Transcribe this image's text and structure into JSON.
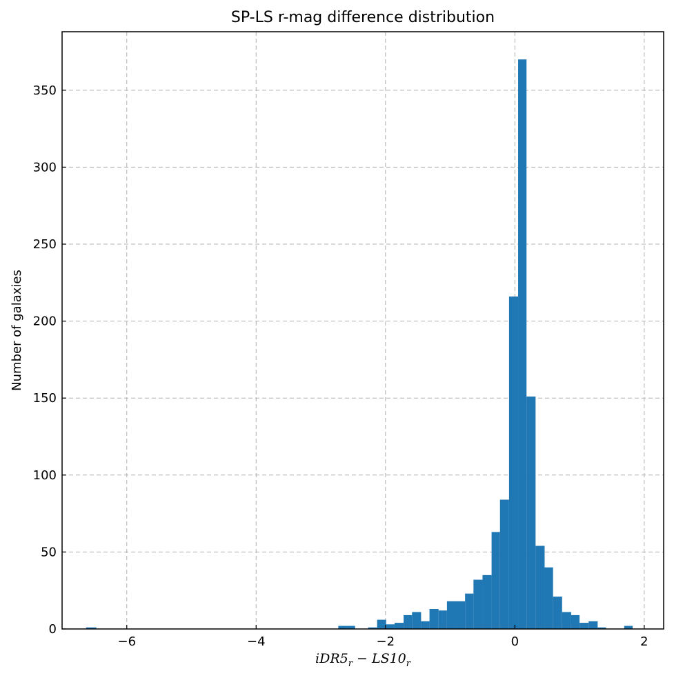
{
  "chart_data": {
    "type": "bar",
    "title": "SP-LS r-mag difference distribution",
    "xlabel": "iDR5_r − LS10_r",
    "ylabel": "Number of galaxies",
    "xlim": [
      -7.0,
      2.3
    ],
    "ylim": [
      0,
      388
    ],
    "xticks": [
      -6,
      -4,
      -2,
      0,
      2
    ],
    "xtick_labels": [
      "−6",
      "−4",
      "−2",
      "0",
      "2"
    ],
    "yticks": [
      0,
      50,
      100,
      150,
      200,
      250,
      300,
      350
    ],
    "grid": true,
    "color": "#1f77b4",
    "bins": [
      {
        "x0": -6.63,
        "x1": -6.47,
        "count": 1
      },
      {
        "x0": -2.73,
        "x1": -2.6,
        "count": 2
      },
      {
        "x0": -2.6,
        "x1": -2.47,
        "count": 2
      },
      {
        "x0": -2.27,
        "x1": -2.13,
        "count": 1
      },
      {
        "x0": -2.13,
        "x1": -1.99,
        "count": 6
      },
      {
        "x0": -1.99,
        "x1": -1.86,
        "count": 3
      },
      {
        "x0": -1.86,
        "x1": -1.72,
        "count": 4
      },
      {
        "x0": -1.72,
        "x1": -1.59,
        "count": 9
      },
      {
        "x0": -1.59,
        "x1": -1.45,
        "count": 11
      },
      {
        "x0": -1.45,
        "x1": -1.32,
        "count": 5
      },
      {
        "x0": -1.32,
        "x1": -1.18,
        "count": 13
      },
      {
        "x0": -1.18,
        "x1": -1.05,
        "count": 12
      },
      {
        "x0": -1.05,
        "x1": -0.91,
        "count": 18
      },
      {
        "x0": -0.91,
        "x1": -0.77,
        "count": 18
      },
      {
        "x0": -0.77,
        "x1": -0.64,
        "count": 23
      },
      {
        "x0": -0.64,
        "x1": -0.5,
        "count": 32
      },
      {
        "x0": -0.5,
        "x1": -0.36,
        "count": 35
      },
      {
        "x0": -0.36,
        "x1": -0.23,
        "count": 63
      },
      {
        "x0": -0.23,
        "x1": -0.09,
        "count": 84
      },
      {
        "x0": -0.09,
        "x1": 0.05,
        "count": 216
      },
      {
        "x0": 0.05,
        "x1": 0.18,
        "count": 370
      },
      {
        "x0": 0.18,
        "x1": 0.32,
        "count": 151
      },
      {
        "x0": 0.32,
        "x1": 0.46,
        "count": 54
      },
      {
        "x0": 0.46,
        "x1": 0.59,
        "count": 40
      },
      {
        "x0": 0.59,
        "x1": 0.73,
        "count": 21
      },
      {
        "x0": 0.73,
        "x1": 0.87,
        "count": 11
      },
      {
        "x0": 0.87,
        "x1": 1.0,
        "count": 9
      },
      {
        "x0": 1.0,
        "x1": 1.14,
        "count": 4
      },
      {
        "x0": 1.14,
        "x1": 1.28,
        "count": 5
      },
      {
        "x0": 1.28,
        "x1": 1.41,
        "count": 1
      },
      {
        "x0": 1.69,
        "x1": 1.82,
        "count": 2
      }
    ]
  }
}
